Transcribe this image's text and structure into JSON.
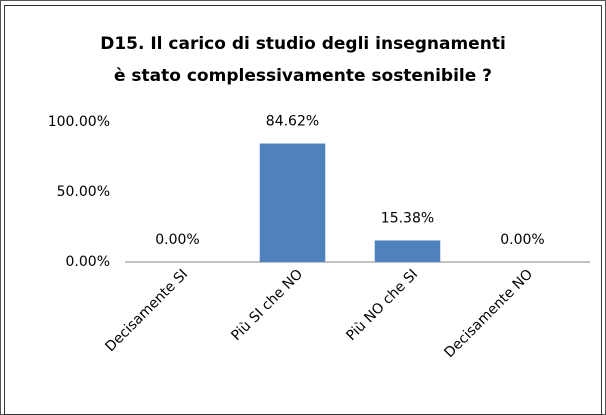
{
  "chart_data": {
    "type": "bar",
    "title": [
      "D15. Il carico di studio degli insegnamenti",
      "è stato complessivamente sostenibile ?"
    ],
    "categories": [
      "Decisamente SI",
      "Più SI che NO",
      "Più NO che SI",
      "Decisamente NO"
    ],
    "values": [
      0,
      84.62,
      15.38,
      0
    ],
    "value_labels": [
      "0.00%",
      "84.62%",
      "15.38%",
      "0.00%"
    ],
    "color": "#4f81bd",
    "ylim": [
      0,
      100
    ],
    "yticks": [
      {
        "value": 0,
        "label": "0.00%"
      },
      {
        "value": 50,
        "label": "50.00%"
      },
      {
        "value": 100,
        "label": "100.00%"
      }
    ],
    "grid": false
  }
}
